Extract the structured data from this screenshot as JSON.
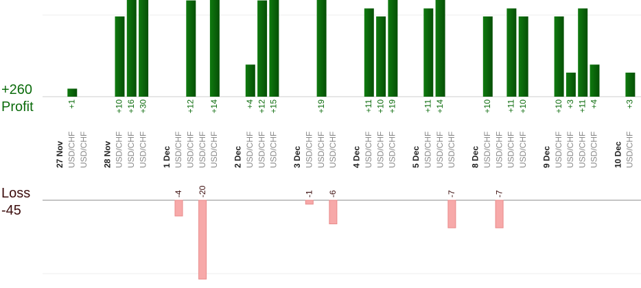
{
  "chart_data": {
    "type": "bar",
    "profit_total": "+260",
    "profit_label": "Profit",
    "loss_label": "Loss",
    "loss_total": "-45",
    "colors": {
      "profit": "#0b6b0b",
      "loss": "#f7a9a9",
      "loss_stroke": "#e88a8a",
      "label_green": "#0b6b0b",
      "date": "#222222",
      "pair": "#888888"
    },
    "columns": [
      {
        "date": "27 Nov"
      },
      {
        "pair": "USD/CHF",
        "value": 1,
        "label": "+1"
      },
      {
        "pair": "USD/CHF"
      },
      {
        "gap": true
      },
      {
        "date": "28 Nov"
      },
      {
        "pair": "USD/CHF",
        "value": 10,
        "label": "+10"
      },
      {
        "pair": "USD/CHF",
        "value": 16,
        "label": "+16"
      },
      {
        "pair": "USD/CHF",
        "value": 30,
        "label": "+30"
      },
      {
        "gap": true
      },
      {
        "date": "1 Dec"
      },
      {
        "pair": "USD/CHF",
        "value": -4,
        "label": "-4"
      },
      {
        "pair": "USD/CHF",
        "value": 12,
        "label": "+12"
      },
      {
        "pair": "USD/CHF",
        "value": -20,
        "label": "-20"
      },
      {
        "pair": "USD/CHF",
        "value": 14,
        "label": "+14"
      },
      {
        "gap": true
      },
      {
        "date": "2 Dec"
      },
      {
        "pair": "USD/CHF",
        "value": 4,
        "label": "+4"
      },
      {
        "pair": "USD/CHF",
        "value": 12,
        "label": "+12"
      },
      {
        "pair": "USD/CHF",
        "value": 15,
        "label": "+15"
      },
      {
        "gap": true
      },
      {
        "date": "3 Dec"
      },
      {
        "pair": "USD/CHF",
        "value": -1,
        "label": "-1"
      },
      {
        "pair": "USD/CHF",
        "value": 19,
        "label": "+19"
      },
      {
        "pair": "USD/CHF",
        "value": -6,
        "label": "-6"
      },
      {
        "gap": true
      },
      {
        "date": "4 Dec"
      },
      {
        "pair": "USD/CHF",
        "value": 11,
        "label": "+11"
      },
      {
        "pair": "USD/CHF",
        "value": 10,
        "label": "+10"
      },
      {
        "pair": "USD/CHF",
        "value": 19,
        "label": "+19"
      },
      {
        "gap": true
      },
      {
        "date": "5 Dec"
      },
      {
        "pair": "USD/CHF",
        "value": 11,
        "label": "+11"
      },
      {
        "pair": "USD/CHF",
        "value": 14,
        "label": "+14"
      },
      {
        "pair": "USD/CHF",
        "value": -7,
        "label": "-7"
      },
      {
        "gap": true
      },
      {
        "date": "8 Dec"
      },
      {
        "pair": "USD/CHF",
        "value": 10,
        "label": "+10"
      },
      {
        "pair": "USD/CHF",
        "value": -7,
        "label": "-7"
      },
      {
        "pair": "USD/CHF",
        "value": 11,
        "label": "+11"
      },
      {
        "pair": "USD/CHF",
        "value": 10,
        "label": "+10"
      },
      {
        "gap": true
      },
      {
        "date": "9 Dec"
      },
      {
        "pair": "USD/CHF",
        "value": 10,
        "label": "+10"
      },
      {
        "pair": "USD/CHF",
        "value": 3,
        "label": "+3"
      },
      {
        "pair": "USD/CHF",
        "value": 11,
        "label": "+11"
      },
      {
        "pair": "USD/CHF",
        "value": 4,
        "label": "+4"
      },
      {
        "gap": true
      },
      {
        "date": "10 Dec"
      },
      {
        "pair": "USD/CHF",
        "value": 3,
        "label": "+3"
      }
    ]
  }
}
